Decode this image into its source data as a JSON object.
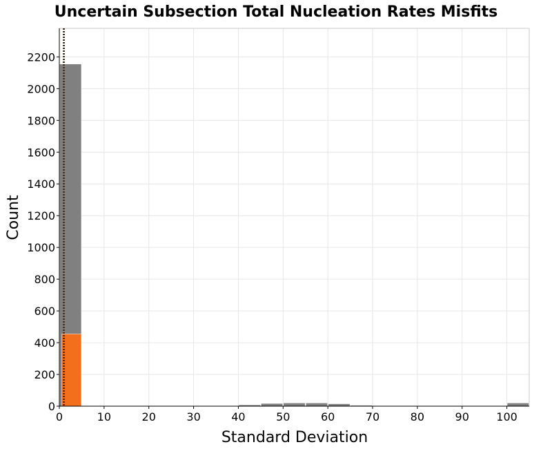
{
  "chart_data": {
    "type": "bar",
    "title": "Uncertain Subsection Total Nucleation Rates Misfits",
    "xlabel": "Standard Deviation",
    "ylabel": "Count",
    "xlim": [
      0,
      105
    ],
    "ylim": [
      0,
      2380
    ],
    "x_ticks": [
      0,
      10,
      20,
      30,
      40,
      50,
      60,
      70,
      80,
      90,
      100
    ],
    "y_ticks": [
      0,
      200,
      400,
      600,
      800,
      1000,
      1200,
      1400,
      1600,
      1800,
      2000,
      2200
    ],
    "grid": true,
    "series": [
      {
        "color": "#808080",
        "bins": [
          {
            "x0": 0,
            "x1": 5,
            "count": 2155
          },
          {
            "x0": 40,
            "x1": 45,
            "count": 8
          },
          {
            "x0": 45,
            "x1": 50,
            "count": 17
          },
          {
            "x0": 50,
            "x1": 55,
            "count": 20
          },
          {
            "x0": 55,
            "x1": 60,
            "count": 20
          },
          {
            "x0": 60,
            "x1": 65,
            "count": 15
          },
          {
            "x0": 65,
            "x1": 70,
            "count": 5
          },
          {
            "x0": 100,
            "x1": 105,
            "count": 20
          }
        ]
      },
      {
        "color": "#f36f1b",
        "bins": [
          {
            "x0": 0.5,
            "x1": 5,
            "count": 455
          }
        ]
      }
    ],
    "reference_line": {
      "x": 1.0,
      "color": "#5a2a0e",
      "style": "dotted"
    }
  }
}
